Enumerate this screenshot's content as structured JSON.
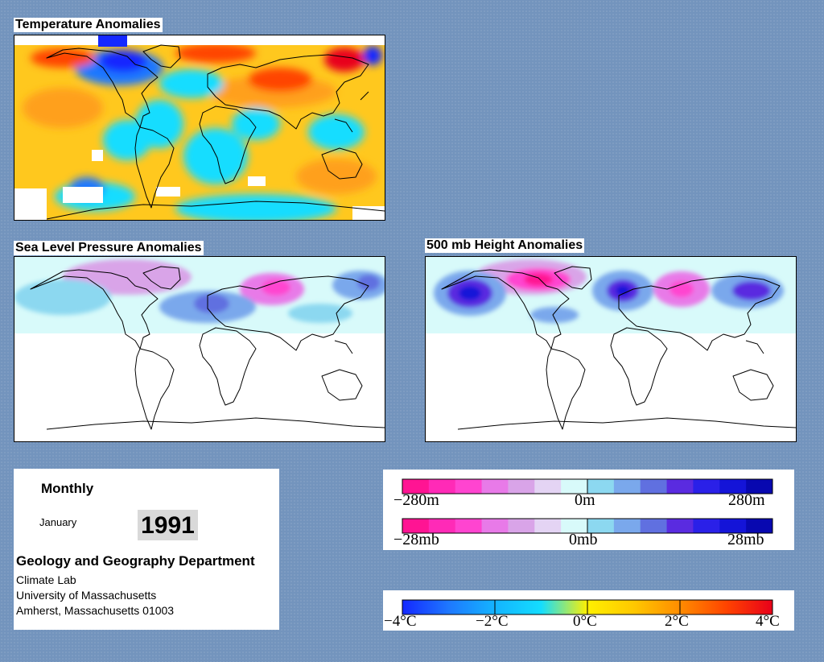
{
  "maps": {
    "temperature": {
      "title": "Temperature Anomalies"
    },
    "pressure": {
      "title": "Sea Level Pressure Anomalies"
    },
    "height": {
      "title": "500 mb Height Anomalies"
    }
  },
  "info": {
    "period": "Monthly",
    "month": "January",
    "year": "1991",
    "department": "Geology and Geography Department",
    "lab": "Climate Lab",
    "university": "University of Massachusetts",
    "address": "Amherst, Massachusetts 01003"
  },
  "legends": {
    "height": {
      "min_label": "−280m",
      "mid_label": "0m",
      "max_label": "280m"
    },
    "pressure": {
      "min_label": "−28mb",
      "mid_label": "0mb",
      "max_label": "28mb"
    },
    "anomaly_colors": [
      "#ff1493",
      "#ff2ab7",
      "#ff44d0",
      "#e87ae8",
      "#d9a4e8",
      "#e4d4f4",
      "#d8fafa",
      "#8cd8f0",
      "#7aa8ec",
      "#6070e0",
      "#5a2be0",
      "#2a20e8",
      "#1414d8",
      "#0808b0"
    ],
    "temperature": {
      "labels": [
        "−4°C",
        "−2°C",
        "0°C",
        "2°C",
        "4°C"
      ]
    },
    "temperature_colors": [
      "#1428ff",
      "#1e78ff",
      "#14b4ff",
      "#14ddff",
      "#fff000",
      "#ffc800",
      "#ff8c00",
      "#ff4400",
      "#e8001a"
    ]
  }
}
